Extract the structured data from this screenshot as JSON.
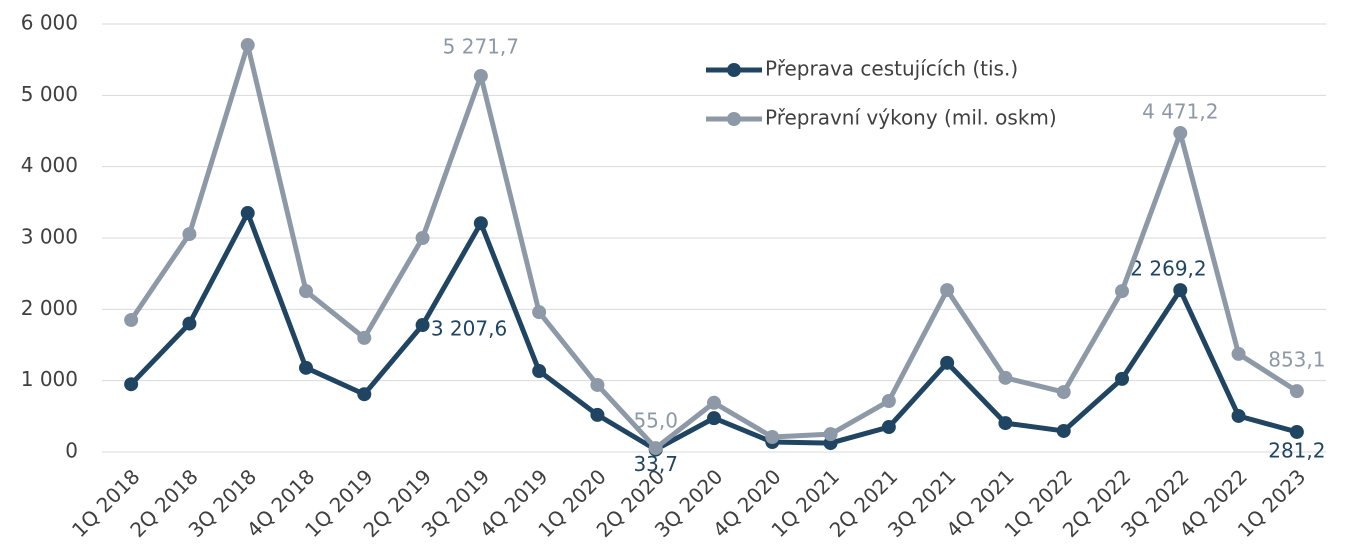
{
  "chart_data": {
    "type": "line",
    "categories": [
      "1Q 2018",
      "2Q 2018",
      "3Q 2018",
      "4Q 2018",
      "1Q 2019",
      "2Q 2019",
      "3Q 2019",
      "4Q 2019",
      "1Q 2020",
      "2Q 2020",
      "3Q 2020",
      "4Q 2020",
      "1Q 2021",
      "2Q 2021",
      "3Q 2021",
      "4Q 2021",
      "1Q 2022",
      "2Q 2022",
      "3Q 2022",
      "4Q 2022",
      "1Q 2023"
    ],
    "series": [
      {
        "name": "Přeprava cestujících (tis.)",
        "color": "#1f4563",
        "values": [
          950,
          1800,
          3350,
          1180,
          810,
          1780,
          3207.6,
          1135,
          520,
          33.7,
          475,
          140,
          125,
          350,
          1250,
          405,
          295,
          1025,
          2269.2,
          505,
          281.2
        ],
        "value_labels": [
          null,
          null,
          null,
          null,
          null,
          null,
          "3 207,6",
          null,
          null,
          "33,7",
          null,
          null,
          null,
          null,
          null,
          null,
          null,
          null,
          "2 269,2",
          null,
          "281,2"
        ]
      },
      {
        "name": "Přepravní výkony (mil. oskm)",
        "color": "#8d99a6",
        "values": [
          1850,
          3055,
          5705,
          2255,
          1600,
          3000,
          5271.7,
          1960,
          940,
          55.0,
          690,
          210,
          250,
          715,
          2270,
          1040,
          840,
          2255,
          4471.2,
          1375,
          853.1
        ],
        "value_labels": [
          null,
          null,
          null,
          null,
          null,
          null,
          "5 271,7",
          null,
          null,
          "55,0",
          null,
          null,
          null,
          null,
          null,
          null,
          null,
          null,
          "4 471,2",
          null,
          "853,1"
        ]
      }
    ],
    "ylim": [
      0,
      6000
    ],
    "yticks": [
      0,
      {
        "value": 1000,
        "label": "1 000"
      },
      {
        "value": 2000,
        "label": "2 000"
      },
      {
        "value": 3000,
        "label": "3 000"
      },
      {
        "value": 4000,
        "label": "4 000"
      },
      {
        "value": 5000,
        "label": "5 000"
      },
      {
        "value": 6000,
        "label": "6 000"
      }
    ],
    "grid": true,
    "legend_position": "top-right"
  }
}
